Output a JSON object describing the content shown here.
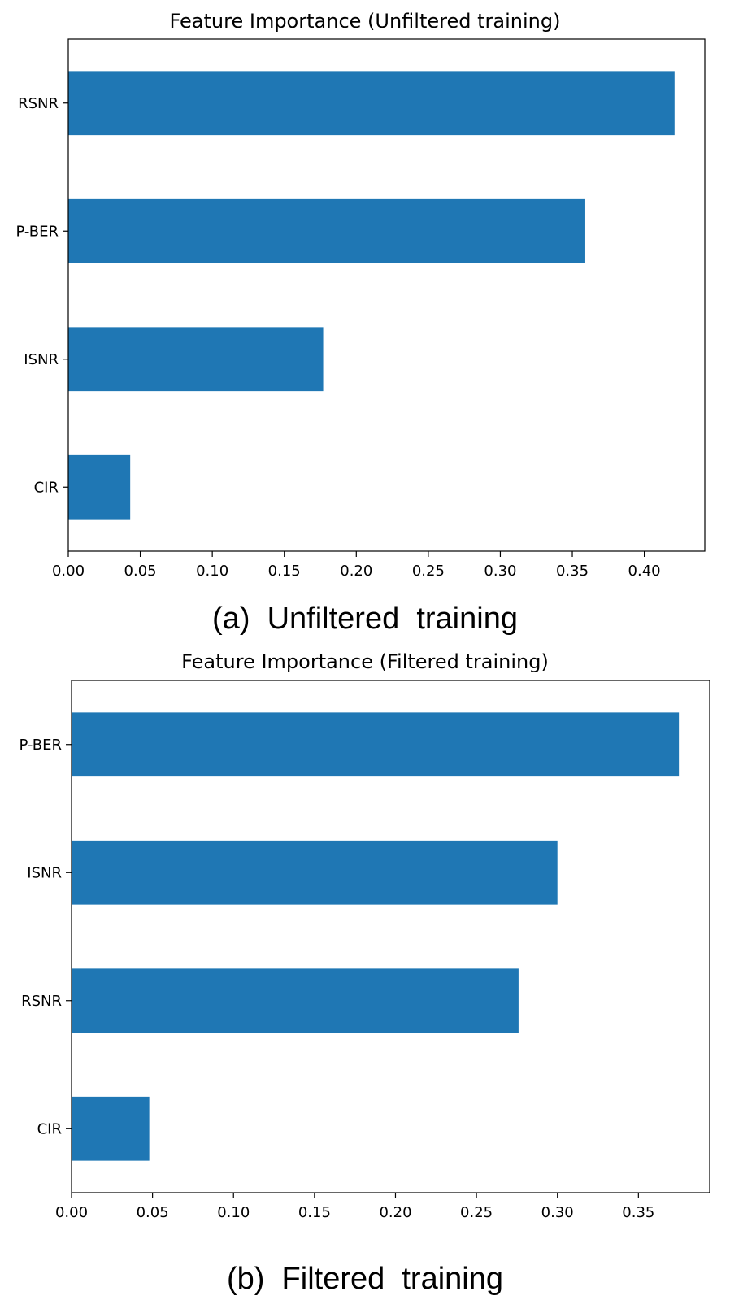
{
  "colors": {
    "bar": "#1f77b4",
    "axis": "#000000",
    "background": "#ffffff"
  },
  "chart_data": [
    {
      "type": "bar",
      "orientation": "horizontal",
      "title": "Feature Importance (Unfiltered training)",
      "caption": "(a)  Unfiltered  training",
      "categories": [
        "RSNR",
        "P-BER",
        "ISNR",
        "CIR"
      ],
      "values": [
        0.421,
        0.359,
        0.177,
        0.043
      ],
      "xticks": [
        "0.00",
        "0.05",
        "0.10",
        "0.15",
        "0.20",
        "0.25",
        "0.30",
        "0.35",
        "0.40"
      ],
      "xlim": [
        0,
        0.442
      ],
      "grid": false
    },
    {
      "type": "bar",
      "orientation": "horizontal",
      "title": "Feature Importance (Filtered training)",
      "caption": "(b)  Filtered  training",
      "categories": [
        "P-BER",
        "ISNR",
        "RSNR",
        "CIR"
      ],
      "values": [
        0.375,
        0.3,
        0.276,
        0.048
      ],
      "xticks": [
        "0.00",
        "0.05",
        "0.10",
        "0.15",
        "0.20",
        "0.25",
        "0.30",
        "0.35"
      ],
      "xlim": [
        0,
        0.394
      ],
      "grid": false
    }
  ]
}
